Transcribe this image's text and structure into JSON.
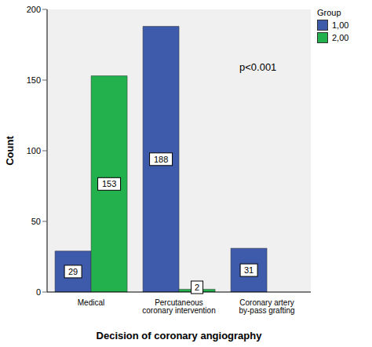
{
  "chart_data": {
    "type": "bar",
    "x_label": "Decision of coronary angiography",
    "y_label": "Count",
    "categories": [
      "Medical",
      "Percutaneous coronary intervention",
      "Coronary artery by-pass grafting"
    ],
    "series": [
      {
        "name": "1,00",
        "color": "#3d5aab",
        "values": [
          29,
          188,
          31
        ]
      },
      {
        "name": "2,00",
        "color": "#22b14c",
        "values": [
          153,
          2,
          null
        ]
      }
    ],
    "ylim": [
      0,
      200
    ],
    "yticks": [
      0,
      50,
      100,
      150,
      200
    ],
    "grid": false,
    "data_labels": true,
    "legend": "top right",
    "legend_title": "Group",
    "annotation": "p<0.001"
  }
}
